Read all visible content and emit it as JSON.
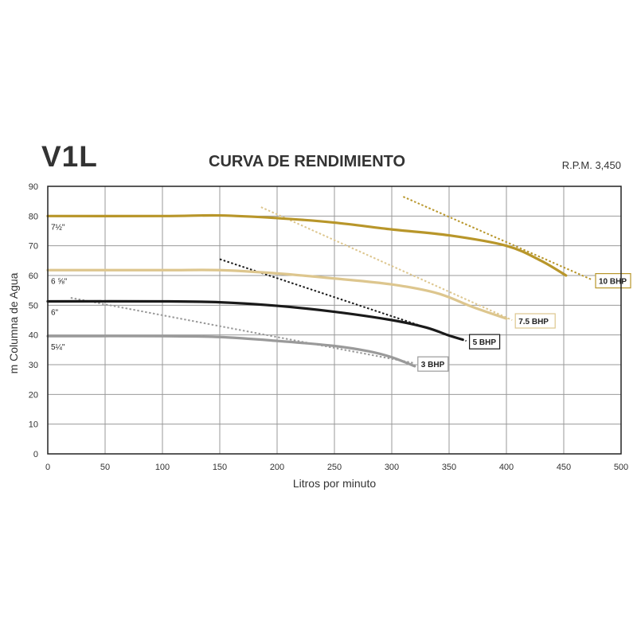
{
  "header": {
    "model": "V1L",
    "title": "CURVA DE RENDIMIENTO",
    "rpm": "R.P.M. 3,450"
  },
  "chart_data": {
    "type": "line",
    "xlabel": "Litros por minuto",
    "ylabel": "m Columna de Agua",
    "xlim": [
      0,
      500
    ],
    "ylim": [
      0,
      90
    ],
    "xticks": [
      "0",
      "50",
      "100",
      "150",
      "200",
      "250",
      "300",
      "350",
      "400",
      "450",
      "500"
    ],
    "yticks": [
      "0",
      "10",
      "20",
      "30",
      "40",
      "50",
      "60",
      "70",
      "80",
      "90"
    ],
    "grid": true,
    "colors": {
      "gold": "#b8962a",
      "sand": "#ddc68e",
      "black": "#1a1a1a",
      "gray": "#9a9a9a"
    },
    "series": [
      {
        "name": "7½\"",
        "color": "#b8962a",
        "points": [
          [
            0,
            80
          ],
          [
            100,
            80
          ],
          [
            150,
            80.2
          ],
          [
            200,
            79.3
          ],
          [
            250,
            77.8
          ],
          [
            300,
            75.5
          ],
          [
            350,
            73.5
          ],
          [
            400,
            70
          ],
          [
            430,
            65
          ],
          [
            452,
            60
          ]
        ]
      },
      {
        "name": "6 ⅝\"",
        "color": "#ddc68e",
        "points": [
          [
            0,
            61.8
          ],
          [
            100,
            61.8
          ],
          [
            150,
            61.8
          ],
          [
            200,
            60.7
          ],
          [
            250,
            59
          ],
          [
            300,
            57
          ],
          [
            340,
            54
          ],
          [
            370,
            49.5
          ],
          [
            400,
            45.5
          ]
        ]
      },
      {
        "name": "6\"",
        "color": "#1a1a1a",
        "points": [
          [
            0,
            51.3
          ],
          [
            100,
            51.3
          ],
          [
            150,
            51
          ],
          [
            200,
            49.8
          ],
          [
            250,
            47.8
          ],
          [
            300,
            45
          ],
          [
            330,
            42.5
          ],
          [
            350,
            39.8
          ],
          [
            362,
            38.4
          ]
        ]
      },
      {
        "name": "5¼\"",
        "color": "#9a9a9a",
        "points": [
          [
            0,
            39.6
          ],
          [
            100,
            39.6
          ],
          [
            150,
            39.3
          ],
          [
            200,
            38
          ],
          [
            250,
            36.3
          ],
          [
            280,
            34.5
          ],
          [
            300,
            32.5
          ],
          [
            320,
            29.5
          ]
        ]
      }
    ],
    "power_lines": [
      {
        "label": "10 BHP",
        "color": "#b8962a",
        "points": [
          [
            310,
            86.5
          ],
          [
            475,
            58.5
          ]
        ]
      },
      {
        "label": "7.5 BHP",
        "color": "#ddc68e",
        "points": [
          [
            186,
            83
          ],
          [
            405,
            45
          ]
        ]
      },
      {
        "label": "5 BHP",
        "color": "#1a1a1a",
        "points": [
          [
            150,
            65.5
          ],
          [
            365,
            38
          ]
        ]
      },
      {
        "label": "3 BHP",
        "color": "#9a9a9a",
        "points": [
          [
            20,
            52.5
          ],
          [
            320,
            30.5
          ]
        ]
      }
    ]
  }
}
